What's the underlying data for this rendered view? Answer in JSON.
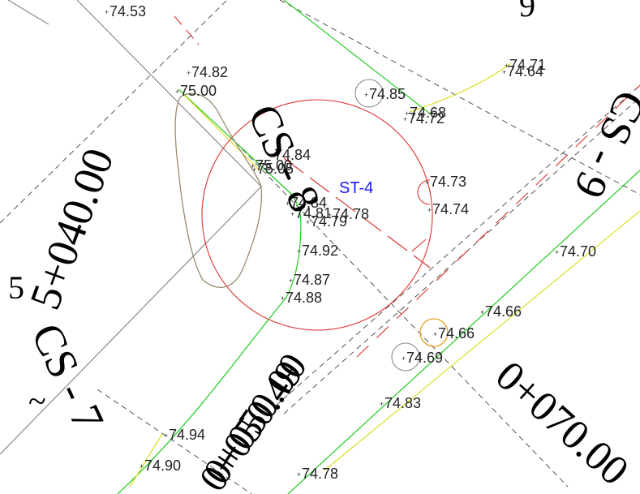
{
  "colors": {
    "gray_line": "#8a8a8a",
    "dash_line": "#555555",
    "green_line": "#22cc22",
    "yellow_line": "#dddd22",
    "red_line": "#e03030",
    "label": "#222222",
    "structure_label": "#1a1aee",
    "tan_outline": "#9a8a70",
    "orange_circle": "#e6a020"
  },
  "drawing": {
    "structure_label": "ST-4",
    "spot_elevations": [
      "74.53",
      "74.82",
      "75.00",
      "74.85",
      "74.71",
      "74.64",
      "74.68",
      "74.72",
      "74.84",
      "75.00",
      "75.05",
      "74.73",
      "74.74",
      "74.84",
      "74.81",
      "74.78",
      "74.79",
      "74.70",
      "74.92",
      "74.87",
      "74.88",
      "74.66",
      "74.66",
      "74.69",
      "74.83",
      "74.94",
      "74.90",
      "74.78"
    ],
    "large_labels": [
      "5+040.00",
      "CS - 7",
      "CS - 8",
      "CS - 9",
      "0+050.49",
      "0+050.00",
      "0+070.00",
      "~",
      "5",
      "9"
    ]
  }
}
